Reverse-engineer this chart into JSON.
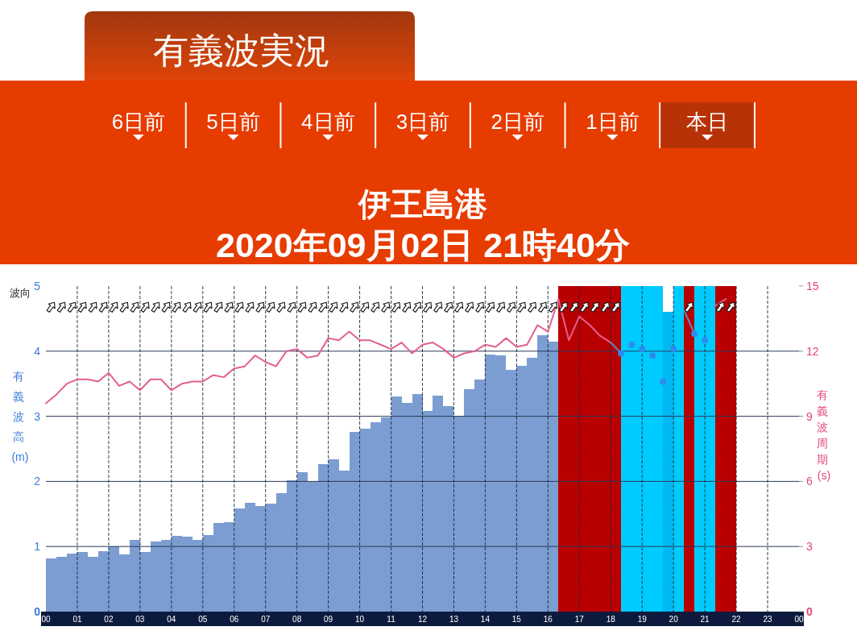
{
  "chart_data": {
    "type": "bar",
    "title": "伊王島港",
    "subtitle": "2020年09月02日 21時40分",
    "ylabel": "有義波高 (m)",
    "y2label": "有義波周期 (s)",
    "annotations": [
      "有義波実況",
      "6日前",
      "5日前",
      "4日前",
      "3日前",
      "2日前",
      "1日前",
      "本日",
      "波向"
    ],
    "xlim": [
      "2020-09-02T00:00",
      "2020-09-03T00:00"
    ],
    "xticks": [
      {
        "value": "2020-09-02T00:00",
        "label": "00"
      },
      {
        "value": "2020-09-02T01:00",
        "label": "01"
      },
      {
        "value": "2020-09-02T02:00",
        "label": "02"
      },
      {
        "value": "2020-09-02T03:00",
        "label": "03"
      },
      {
        "value": "2020-09-02T04:00",
        "label": "04"
      },
      {
        "value": "2020-09-02T05:00",
        "label": "05"
      },
      {
        "value": "2020-09-02T06:00",
        "label": "06"
      },
      {
        "value": "2020-09-02T07:00",
        "label": "07"
      },
      {
        "value": "2020-09-02T08:00",
        "label": "08"
      },
      {
        "value": "2020-09-02T09:00",
        "label": "09"
      },
      {
        "value": "2020-09-02T10:00",
        "label": "10"
      },
      {
        "value": "2020-09-02T11:00",
        "label": "11"
      },
      {
        "value": "2020-09-02T12:00",
        "label": "12"
      },
      {
        "value": "2020-09-02T13:00",
        "label": "13"
      },
      {
        "value": "2020-09-02T14:00",
        "label": "14"
      },
      {
        "value": "2020-09-02T15:00",
        "label": "15"
      },
      {
        "value": "2020-09-02T16:00",
        "label": "16"
      },
      {
        "value": "2020-09-02T17:00",
        "label": "17"
      },
      {
        "value": "2020-09-02T18:00",
        "label": "18"
      },
      {
        "value": "2020-09-02T19:00",
        "label": "19"
      },
      {
        "value": "2020-09-02T20:00",
        "label": "20"
      },
      {
        "value": "2020-09-02T21:00",
        "label": "21"
      },
      {
        "value": "2020-09-02T22:00",
        "label": "22"
      },
      {
        "value": "2020-09-02T23:00",
        "label": "23"
      },
      {
        "value": "2020-09-03T00:00",
        "label": "00"
      }
    ],
    "ylim": [
      0,
      5
    ],
    "yticks": [
      0,
      1,
      2,
      3,
      4,
      5
    ],
    "y2lim": [
      0,
      15
    ],
    "y2ticks": [
      0,
      3,
      6,
      9,
      12,
      15
    ],
    "grid": true,
    "bands": [
      {
        "axis": "x",
        "from": "2020-09-02T16:20",
        "to": "2020-09-02T18:20",
        "color": "#b90000"
      },
      {
        "axis": "x",
        "from": "2020-09-02T18:20",
        "to": "2020-09-02T19:40",
        "color": "#00cbff"
      },
      {
        "axis": "x",
        "from": "2020-09-02T20:00",
        "to": "2020-09-02T20:20",
        "color": "#00cbff"
      },
      {
        "axis": "x",
        "from": "2020-09-02T20:20",
        "to": "2020-09-02T20:40",
        "color": "#b90000"
      },
      {
        "axis": "x",
        "from": "2020-09-02T20:40",
        "to": "2020-09-02T21:20",
        "color": "#00cbff"
      },
      {
        "axis": "x",
        "from": "2020-09-02T21:20",
        "to": "2020-09-02T22:00",
        "color": "#b90000"
      }
    ],
    "series": [
      {
        "color": "#7b9dd1",
        "x": [
          "2020-09-02T00:10",
          "2020-09-02T00:30",
          "2020-09-02T00:50",
          "2020-09-02T01:10",
          "2020-09-02T01:30",
          "2020-09-02T01:50",
          "2020-09-02T02:10",
          "2020-09-02T02:30",
          "2020-09-02T02:50",
          "2020-09-02T03:10",
          "2020-09-02T03:30",
          "2020-09-02T03:50",
          "2020-09-02T04:10",
          "2020-09-02T04:30",
          "2020-09-02T04:50",
          "2020-09-02T05:10",
          "2020-09-02T05:30",
          "2020-09-02T05:50",
          "2020-09-02T06:10",
          "2020-09-02T06:30",
          "2020-09-02T06:50",
          "2020-09-02T07:10",
          "2020-09-02T07:30",
          "2020-09-02T07:50",
          "2020-09-02T08:10",
          "2020-09-02T08:30",
          "2020-09-02T08:50",
          "2020-09-02T09:10",
          "2020-09-02T09:30",
          "2020-09-02T09:50",
          "2020-09-02T10:10",
          "2020-09-02T10:30",
          "2020-09-02T10:50",
          "2020-09-02T11:10",
          "2020-09-02T11:30",
          "2020-09-02T11:50",
          "2020-09-02T12:10",
          "2020-09-02T12:30",
          "2020-09-02T12:50",
          "2020-09-02T13:10",
          "2020-09-02T13:30",
          "2020-09-02T13:50",
          "2020-09-02T14:10",
          "2020-09-02T14:30",
          "2020-09-02T14:50",
          "2020-09-02T15:10",
          "2020-09-02T15:30",
          "2020-09-02T15:50",
          "2020-09-02T16:10"
        ],
        "values": [
          0.82,
          0.84,
          0.89,
          0.92,
          0.84,
          0.93,
          1,
          0.88,
          1.1,
          0.92,
          1.08,
          1.1,
          1.16,
          1.15,
          1.1,
          1.18,
          1.36,
          1.38,
          1.58,
          1.67,
          1.62,
          1.66,
          1.82,
          2.02,
          2.14,
          1.99,
          2.27,
          2.34,
          2.17,
          2.76,
          2.81,
          2.91,
          2.98,
          3.3,
          3.2,
          3.34,
          3.08,
          3.32,
          3.16,
          3.01,
          3.41,
          3.57,
          3.95,
          3.94,
          3.71,
          3.78,
          3.9,
          4.24,
          4.15
        ]
      },
      {
        "color": "#00b9f2",
        "x": [
          "2020-09-02T19:50"
        ],
        "values": [
          4.6
        ]
      },
      {
        "type": "line",
        "axis": "y2",
        "color": "#e2608e",
        "x": [
          "2020-09-02T00:00",
          "2020-09-02T00:20",
          "2020-09-02T00:40",
          "2020-09-02T01:00",
          "2020-09-02T01:20",
          "2020-09-02T01:40",
          "2020-09-02T02:00",
          "2020-09-02T02:20",
          "2020-09-02T02:40",
          "2020-09-02T03:00",
          "2020-09-02T03:20",
          "2020-09-02T03:40",
          "2020-09-02T04:00",
          "2020-09-02T04:20",
          "2020-09-02T04:40",
          "2020-09-02T05:00",
          "2020-09-02T05:20",
          "2020-09-02T05:40",
          "2020-09-02T06:00",
          "2020-09-02T06:20",
          "2020-09-02T06:40",
          "2020-09-02T07:00",
          "2020-09-02T07:20",
          "2020-09-02T07:40",
          "2020-09-02T08:00",
          "2020-09-02T08:20",
          "2020-09-02T08:40",
          "2020-09-02T09:00",
          "2020-09-02T09:20",
          "2020-09-02T09:40",
          "2020-09-02T10:00",
          "2020-09-02T10:20",
          "2020-09-02T10:40",
          "2020-09-02T11:00",
          "2020-09-02T11:20",
          "2020-09-02T11:40",
          "2020-09-02T12:00",
          "2020-09-02T12:20",
          "2020-09-02T12:40",
          "2020-09-02T13:00",
          "2020-09-02T13:20",
          "2020-09-02T13:40",
          "2020-09-02T14:00",
          "2020-09-02T14:20",
          "2020-09-02T14:40",
          "2020-09-02T15:00",
          "2020-09-02T15:20",
          "2020-09-02T15:40",
          "2020-09-02T16:00",
          "2020-09-02T16:20",
          "2020-09-02T16:40",
          "2020-09-02T17:00",
          "2020-09-02T17:20",
          "2020-09-02T17:40",
          "2020-09-02T18:00"
        ],
        "values": [
          9.6,
          10,
          10.5,
          10.7,
          10.7,
          10.6,
          11,
          10.4,
          10.6,
          10.2,
          10.7,
          10.7,
          10.2,
          10.5,
          10.6,
          10.6,
          10.9,
          10.8,
          11.2,
          11.3,
          11.8,
          11.5,
          11.3,
          12,
          12.1,
          11.7,
          11.8,
          12.6,
          12.5,
          12.9,
          12.5,
          12.5,
          12.3,
          12.1,
          12.4,
          11.9,
          12.3,
          12.4,
          12.1,
          11.7,
          11.9,
          12,
          12.3,
          12.2,
          12.6,
          12.2,
          12.3,
          13.2,
          12.9,
          14.4,
          12.5,
          13.6,
          13.2,
          12.7,
          12.4
        ]
      },
      {
        "type": "line",
        "axis": "y2",
        "color": "#e2608e",
        "x": [
          "2020-09-02T21:20",
          "2020-09-02T21:40"
        ],
        "values": [
          14.1,
          14.4
        ]
      },
      {
        "type": "line",
        "axis": "y2",
        "color": "#5a8cc2",
        "x": [
          "2020-09-02T18:00",
          "2020-09-02T18:20"
        ],
        "values": [
          12.4,
          11.9
        ]
      },
      {
        "type": "line",
        "axis": "y2",
        "color": "#5a8cc2",
        "x": [
          "2020-09-02T20:20",
          "2020-09-02T20:40"
        ],
        "values": [
          13.9,
          12.8
        ]
      },
      {
        "type": "scatter",
        "axis": "y2",
        "color": "#2b8cef",
        "marker": "circle",
        "x": [
          "2020-09-02T18:20",
          "2020-09-02T18:40",
          "2020-09-02T19:00",
          "2020-09-02T19:20",
          "2020-09-02T19:40",
          "2020-09-02T20:00",
          "2020-09-02T20:40",
          "2020-09-02T21:00"
        ],
        "values": [
          11.9,
          12.3,
          12.1,
          11.8,
          10.6,
          12.1,
          12.8,
          12.5
        ]
      }
    ]
  }
}
